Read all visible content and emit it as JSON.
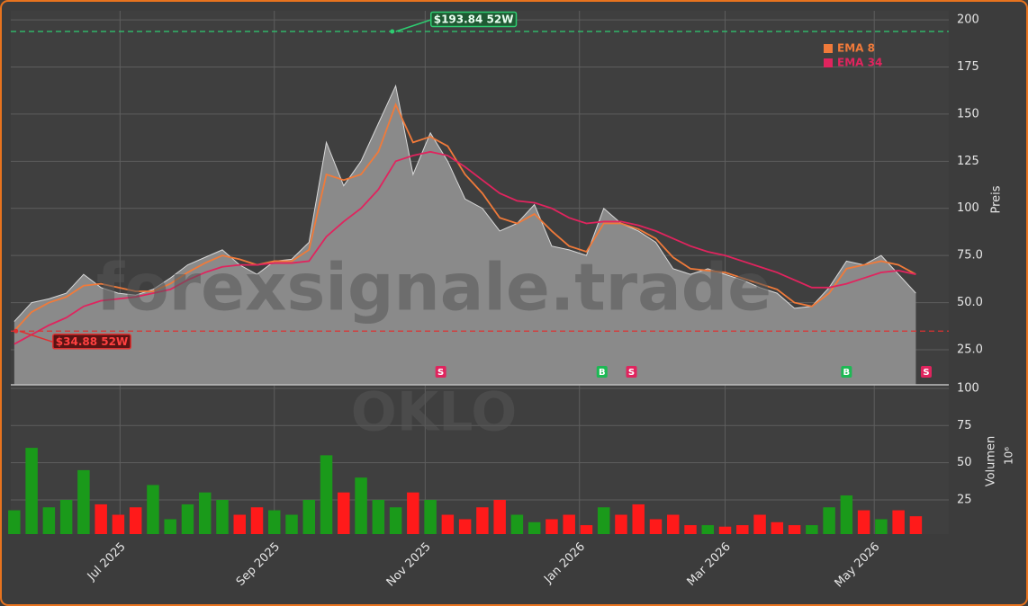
{
  "chart_data": {
    "type": "area",
    "watermark": "forexsignale.trade",
    "watermark_symbol": "OKLO",
    "y_label": "Preis",
    "xlim": [
      -0.2,
      53.9
    ],
    "xticks": [
      {
        "value": 6.1,
        "label": "Jul 2025"
      },
      {
        "value": 15,
        "label": "Sep 2025"
      },
      {
        "value": 23.7,
        "label": "Nov 2025"
      },
      {
        "value": 32.6,
        "label": "Jan 2026"
      },
      {
        "value": 41,
        "label": "Mar 2026"
      },
      {
        "value": 49.6,
        "label": "May 2026"
      }
    ],
    "ylim": [
      6.4,
      204.8
    ],
    "yticks": [
      {
        "value": 25,
        "label": "25.0"
      },
      {
        "value": 50,
        "label": "50.0"
      },
      {
        "value": 75,
        "label": "75.0"
      },
      100,
      125,
      150,
      175,
      200
    ],
    "grid": true,
    "legend": "upper right",
    "close": {
      "color": "#8a8a8a",
      "values": [
        40,
        50,
        52,
        55,
        65,
        58,
        55,
        54,
        57,
        63,
        70,
        74,
        78,
        70,
        65,
        72,
        73,
        82,
        135,
        112,
        125,
        145,
        165,
        118,
        140,
        125,
        105,
        100,
        88,
        92,
        102,
        80,
        78,
        75,
        100,
        92,
        88,
        82,
        68,
        65,
        68,
        65,
        62,
        58,
        55,
        47,
        48,
        58,
        72,
        70,
        75,
        65,
        55
      ]
    },
    "series": [
      {
        "name": "EMA 8",
        "color": "#f07a3a",
        "values": [
          35,
          45,
          50,
          53,
          59,
          60,
          58,
          56,
          56,
          60,
          66,
          71,
          75,
          73,
          70,
          72,
          72,
          78,
          118,
          115,
          118,
          130,
          155,
          135,
          138,
          133,
          118,
          108,
          95,
          92,
          97,
          88,
          80,
          77,
          92,
          92,
          89,
          84,
          74,
          68,
          67,
          66,
          63,
          60,
          57,
          50,
          48,
          55,
          68,
          70,
          72,
          70,
          65
        ]
      },
      {
        "name": "EMA 34",
        "color": "#e0245e",
        "values": [
          28,
          33,
          38,
          42,
          48,
          51,
          52,
          53,
          55,
          57,
          62,
          66,
          69,
          70,
          70,
          71,
          71,
          72,
          85,
          93,
          100,
          110,
          125,
          128,
          130,
          128,
          122,
          115,
          108,
          104,
          103,
          100,
          95,
          92,
          93,
          93,
          91,
          88,
          84,
          80,
          77,
          75,
          72,
          69,
          66,
          62,
          58,
          58,
          60,
          63,
          66,
          67,
          65
        ]
      }
    ],
    "annotations": [
      {
        "text": "$193.84 52W",
        "value": 193.84,
        "x": 21.8,
        "color": "#2ecc71"
      },
      {
        "text": "$34.88 52W",
        "value": 34.88,
        "x": 0.1,
        "color": "#e03030"
      }
    ],
    "signals": [
      {
        "label": "S",
        "x": 24.6,
        "color": "#e0245e"
      },
      {
        "label": "B",
        "x": 33.9,
        "color": "#1db954"
      },
      {
        "label": "S",
        "x": 35.6,
        "color": "#e0245e"
      },
      {
        "label": "B",
        "x": 48,
        "color": "#1db954"
      },
      {
        "label": "S",
        "x": 52.6,
        "color": "#e0245e"
      }
    ],
    "volume": {
      "label": "Volumen",
      "unit": "10⁶",
      "up_color": "#1a9a1a",
      "down_color": "#ff1a1a",
      "ylim": [
        2,
        102.4
      ],
      "yticks": [
        25,
        50,
        75,
        100
      ],
      "values": [
        18,
        60,
        20,
        25,
        45,
        22,
        15,
        20,
        35,
        12,
        22,
        30,
        25,
        15,
        20,
        18,
        15,
        25,
        55,
        30,
        40,
        25,
        20,
        30,
        25,
        15,
        12,
        20,
        25,
        15,
        10,
        12,
        15,
        8,
        20,
        15,
        22,
        12,
        15,
        8,
        8,
        7,
        8,
        15,
        10,
        8,
        8,
        20,
        28,
        18,
        12,
        18,
        14
      ]
    }
  }
}
